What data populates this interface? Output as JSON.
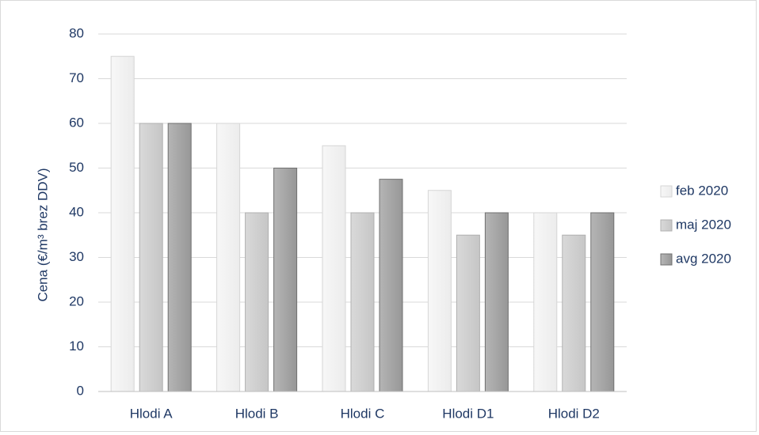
{
  "chart_data": {
    "type": "bar",
    "title": "",
    "xlabel": "",
    "ylabel": "Cena (€/m³ brez DDV)",
    "ylim": [
      0,
      80
    ],
    "yticks": [
      0,
      10,
      20,
      30,
      40,
      50,
      60,
      70,
      80
    ],
    "grid": true,
    "legend_position": "right",
    "categories": [
      "Hlodi A",
      "Hlodi B",
      "Hlodi C",
      "Hlodi D1",
      "Hlodi D2"
    ],
    "series": [
      {
        "name": "feb 2020",
        "color": "#f2f2f2",
        "values": [
          75,
          60,
          55,
          45,
          40
        ]
      },
      {
        "name": "maj 2020",
        "color": "#d0d0d0",
        "values": [
          60,
          40,
          40,
          35,
          35
        ]
      },
      {
        "name": "avg 2020",
        "color": "#a6a6a6",
        "values": [
          60,
          50,
          47.5,
          40,
          40
        ]
      }
    ]
  }
}
